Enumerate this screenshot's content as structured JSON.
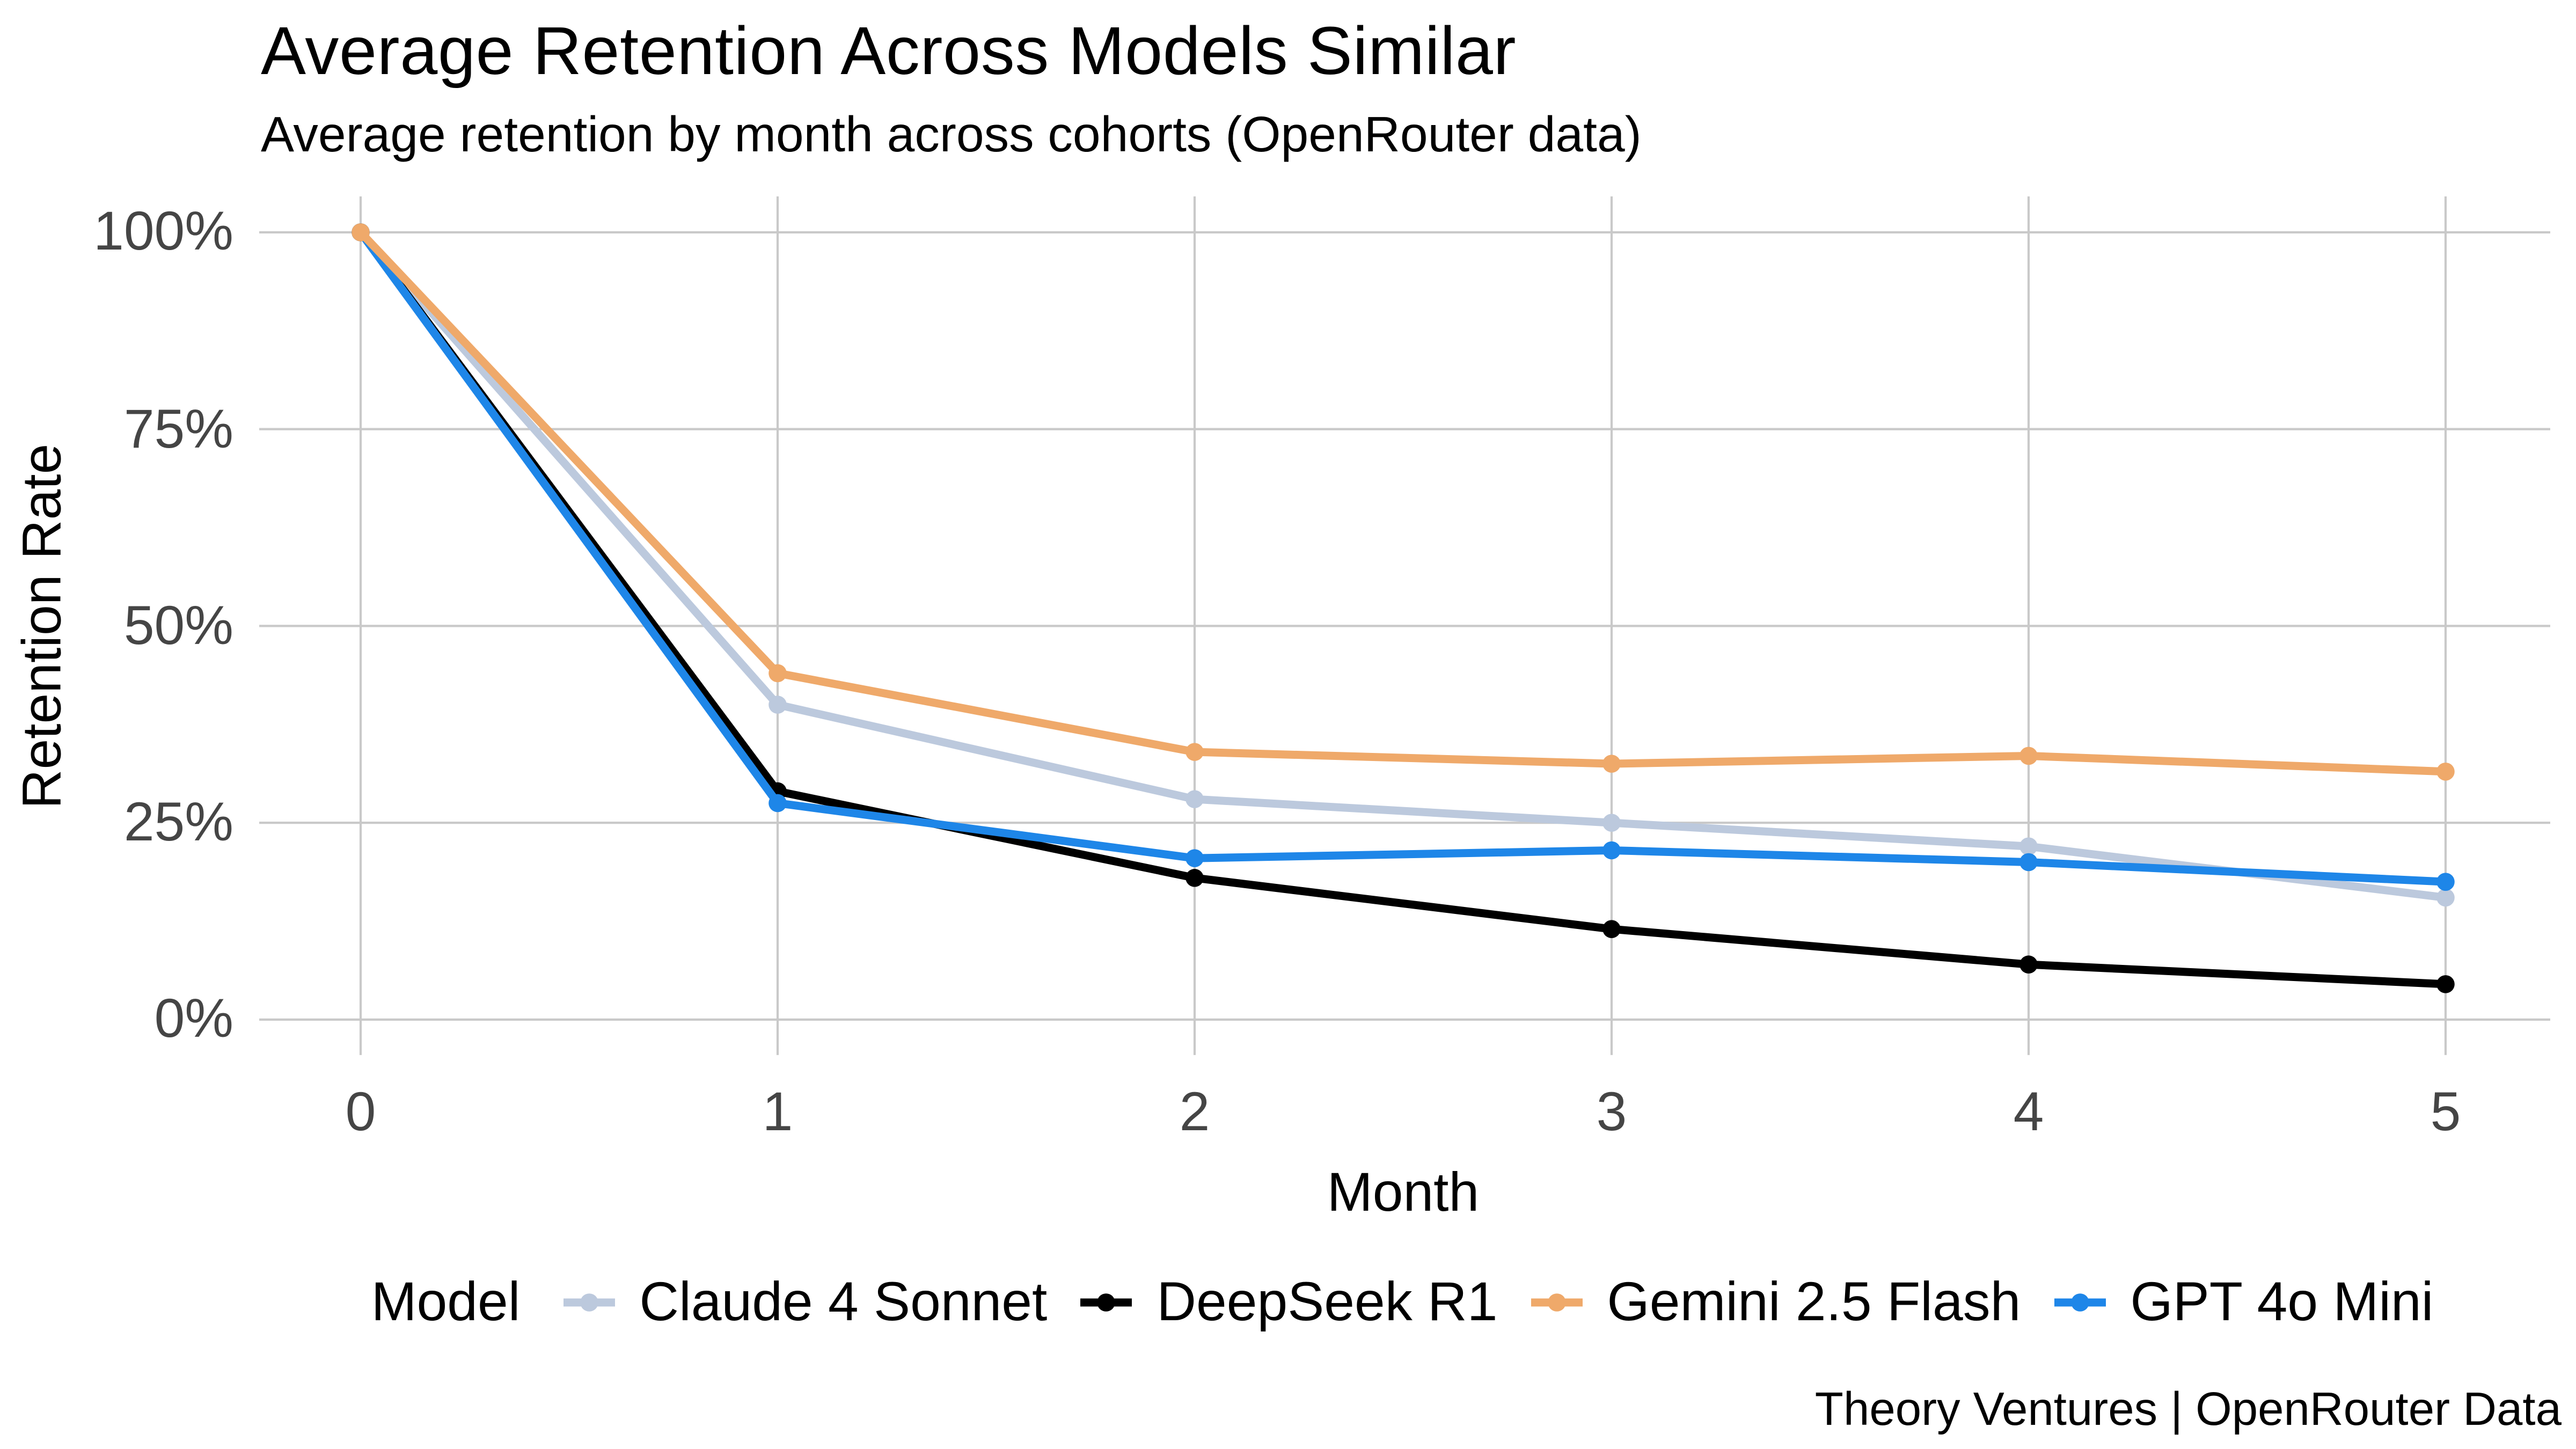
{
  "header": {
    "title": "Average Retention Across Models Similar",
    "subtitle": "Average retention by month across cohorts (OpenRouter data)"
  },
  "footer": {
    "attribution": "Theory Ventures | OpenRouter Data"
  },
  "colors": {
    "background": "#ffffff",
    "gridline": "#c9c9c9",
    "tick_label": "#454545",
    "text": "#000000"
  },
  "chart_data": {
    "type": "line",
    "title": "Average Retention Across Models Similar",
    "subtitle": "Average retention by month across cohorts (OpenRouter data)",
    "xlabel": "Month",
    "ylabel": "Retention Rate",
    "x": [
      0,
      1,
      2,
      3,
      4,
      5
    ],
    "x_tick_labels": [
      "0",
      "1",
      "2",
      "3",
      "4",
      "5"
    ],
    "y_ticks": [
      0,
      25,
      50,
      75,
      100
    ],
    "y_tick_labels": [
      "0%",
      "25%",
      "50%",
      "75%",
      "100%"
    ],
    "ylim": [
      0,
      100
    ],
    "grid": true,
    "legend_position": "bottom",
    "legend_title": "Model",
    "series": [
      {
        "name": "Claude 4 Sonnet",
        "color": "#bcc9dd",
        "z": 1,
        "values": [
          100,
          40,
          28,
          25,
          22,
          15.5
        ]
      },
      {
        "name": "DeepSeek R1",
        "color": "#000000",
        "z": 2,
        "values": [
          100,
          29,
          18,
          11.5,
          7,
          4.5
        ]
      },
      {
        "name": "Gemini 2.5 Flash",
        "color": "#efa96a",
        "z": 4,
        "values": [
          100,
          44,
          34,
          32.5,
          33.5,
          31.5
        ]
      },
      {
        "name": "GPT 4o Mini",
        "color": "#1e86e8",
        "z": 3,
        "values": [
          100,
          27.5,
          20.5,
          21.5,
          20,
          17.5
        ]
      }
    ]
  }
}
